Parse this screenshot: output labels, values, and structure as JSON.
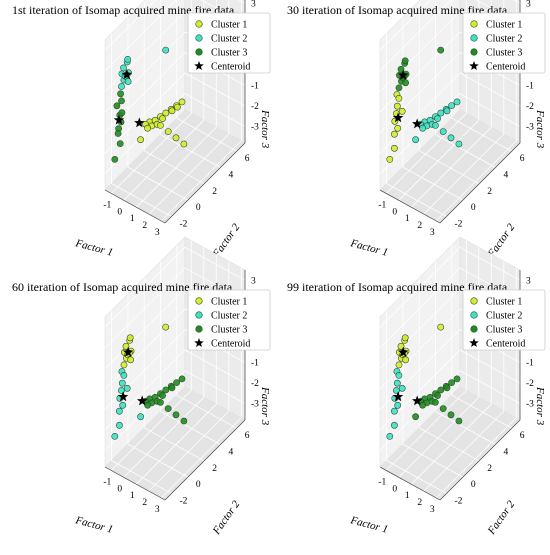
{
  "chart_data": [
    {
      "type": "scatter",
      "title": "1st iteration of Isomap acquired mine fire data",
      "xlabel": "Factor 1",
      "ylabel": "Factor 2",
      "zlabel": "Factor 3",
      "xlim": [
        -1.5,
        3.3
      ],
      "ylim": [
        -2.8,
        7.0
      ],
      "zlim": [
        -3.8,
        3.5
      ],
      "x_ticks": [
        "-1",
        "0",
        "1",
        "2",
        "3"
      ],
      "y_ticks": [
        "-2",
        "0",
        "2",
        "4",
        "6"
      ],
      "z_ticks": [
        "-3",
        "-2",
        "-1",
        "0",
        "1",
        "2",
        "3"
      ],
      "legend_position": "top-right",
      "series": [
        {
          "name": "Cluster 1",
          "color": "#d8ea2a",
          "points": [
            [
              0.9,
              -1.0,
              -0.4
            ],
            [
              1.2,
              -0.8,
              -0.3
            ],
            [
              1.5,
              -0.6,
              -0.1
            ],
            [
              1.8,
              -0.4,
              0.1
            ],
            [
              2.1,
              -0.2,
              0.3
            ],
            [
              2.4,
              0.0,
              0.5
            ],
            [
              2.7,
              0.2,
              0.7
            ],
            [
              1.0,
              -0.9,
              -0.6
            ],
            [
              1.3,
              -0.7,
              -0.5
            ],
            [
              1.6,
              -0.5,
              -0.2
            ],
            [
              0.7,
              -1.2,
              -0.5
            ],
            [
              0.8,
              -1.1,
              -0.7
            ],
            [
              1.1,
              0.0,
              -0.9
            ],
            [
              1.4,
              0.5,
              -1.3
            ],
            [
              1.7,
              1.0,
              -1.7
            ],
            [
              2.0,
              1.5,
              -2.1
            ],
            [
              0.5,
              -1.5,
              -1.2
            ],
            [
              1.9,
              0.2,
              0.0
            ],
            [
              2.2,
              0.4,
              0.2
            ]
          ]
        },
        {
          "name": "Cluster 2",
          "color": "#3de0c8",
          "points": [
            [
              -1.0,
              -1.5,
              1.5
            ],
            [
              -0.8,
              -1.6,
              1.9
            ],
            [
              -0.9,
              -1.4,
              1.2
            ],
            [
              -0.6,
              -1.7,
              1.6
            ],
            [
              -0.7,
              -1.3,
              2.1
            ],
            [
              -0.5,
              -1.5,
              1.3
            ],
            [
              -0.9,
              -1.7,
              1.0
            ],
            [
              -0.4,
              -1.6,
              1.8
            ],
            [
              -0.8,
              -1.2,
              1.4
            ],
            [
              -0.6,
              -1.4,
              2.3
            ],
            [
              1.2,
              0.5,
              2.6
            ]
          ]
        },
        {
          "name": "Cluster 3",
          "color": "#1f8c1f",
          "points": [
            [
              -1.2,
              -1.8,
              0.0
            ],
            [
              -1.1,
              -1.6,
              -0.5
            ],
            [
              -1.0,
              -1.9,
              -1.0
            ],
            [
              -1.3,
              -1.5,
              -1.5
            ],
            [
              -0.9,
              -1.7,
              0.3
            ],
            [
              -1.2,
              -1.4,
              -2.0
            ],
            [
              -1.0,
              -1.6,
              -0.8
            ],
            [
              -1.3,
              -1.9,
              -2.6
            ],
            [
              -0.8,
              -1.8,
              -0.2
            ],
            [
              -1.1,
              -1.5,
              0.5
            ]
          ]
        }
      ],
      "centroids": [
        [
          0.2,
          -1.2,
          -0.6
        ],
        [
          -0.6,
          -1.5,
          1.6
        ],
        [
          -1.1,
          -1.7,
          -0.7
        ]
      ]
    },
    {
      "type": "scatter",
      "title": "30 iteration of Isomap acquired mine fire data",
      "xlabel": "Factor 1",
      "ylabel": "Factor 2",
      "zlabel": "Factor 3",
      "xlim": [
        -1.5,
        3.3
      ],
      "ylim": [
        -2.8,
        7.0
      ],
      "zlim": [
        -3.8,
        3.5
      ],
      "x_ticks": [
        "-1",
        "0",
        "1",
        "2",
        "3"
      ],
      "y_ticks": [
        "-2",
        "0",
        "2",
        "4",
        "6"
      ],
      "z_ticks": [
        "-3",
        "-2",
        "-1",
        "0",
        "1",
        "2",
        "3"
      ],
      "legend_position": "top-right",
      "series": [
        {
          "name": "Cluster 1",
          "color": "#d8ea2a",
          "points": [
            [
              -1.0,
              -1.5,
              0.5
            ],
            [
              -0.9,
              -1.6,
              0.0
            ],
            [
              -1.1,
              -1.4,
              -0.5
            ],
            [
              -0.8,
              -1.7,
              -1.0
            ],
            [
              -1.2,
              -1.5,
              -1.5
            ],
            [
              -1.0,
              -1.8,
              -2.0
            ],
            [
              -0.9,
              -1.4,
              0.3
            ],
            [
              -1.1,
              -1.6,
              -0.8
            ],
            [
              -1.3,
              -1.9,
              -2.6
            ],
            [
              -0.7,
              -1.3,
              -0.3
            ]
          ]
        },
        {
          "name": "Cluster 2",
          "color": "#3de0c8",
          "points": [
            [
              0.9,
              -1.0,
              -0.4
            ],
            [
              1.2,
              -0.8,
              -0.3
            ],
            [
              1.5,
              -0.6,
              -0.1
            ],
            [
              1.8,
              -0.4,
              0.1
            ],
            [
              2.1,
              -0.2,
              0.3
            ],
            [
              2.4,
              0.0,
              0.5
            ],
            [
              2.7,
              0.2,
              0.7
            ],
            [
              1.0,
              -0.9,
              -0.6
            ],
            [
              1.3,
              -0.7,
              -0.5
            ],
            [
              1.6,
              -0.5,
              -0.2
            ],
            [
              0.7,
              -1.2,
              -0.5
            ],
            [
              0.8,
              -1.1,
              -0.7
            ],
            [
              1.1,
              0.0,
              -0.9
            ],
            [
              1.4,
              0.5,
              -1.3
            ],
            [
              1.7,
              1.0,
              -1.7
            ],
            [
              2.0,
              1.5,
              -2.1
            ],
            [
              0.5,
              -1.5,
              -1.2
            ],
            [
              1.9,
              0.2,
              0.0
            ]
          ]
        },
        {
          "name": "Cluster 3",
          "color": "#1f8c1f",
          "points": [
            [
              -0.8,
              -1.5,
              1.5
            ],
            [
              -0.6,
              -1.6,
              1.9
            ],
            [
              -0.7,
              -1.4,
              1.2
            ],
            [
              -0.4,
              -1.7,
              1.6
            ],
            [
              -0.5,
              -1.3,
              2.1
            ],
            [
              -0.3,
              -1.5,
              1.3
            ],
            [
              -0.7,
              -1.7,
              1.0
            ],
            [
              -0.2,
              -1.6,
              1.8
            ],
            [
              -0.6,
              -1.2,
              1.4
            ],
            [
              -0.4,
              -1.4,
              2.3
            ],
            [
              1.2,
              0.5,
              2.6
            ]
          ]
        }
      ],
      "centroids": [
        [
          -0.9,
          -1.5,
          -0.6
        ],
        [
          0.3,
          -1.0,
          -0.7
        ],
        [
          -0.5,
          -1.5,
          1.6
        ]
      ]
    },
    {
      "type": "scatter",
      "title": "60 iteration of Isomap acquired mine fire data",
      "xlabel": "Factor 1",
      "ylabel": "Factor 2",
      "zlabel": "Factor 3",
      "xlim": [
        -1.5,
        3.3
      ],
      "ylim": [
        -2.8,
        7.0
      ],
      "zlim": [
        -3.8,
        3.5
      ],
      "x_ticks": [
        "-1",
        "0",
        "1",
        "2",
        "3"
      ],
      "y_ticks": [
        "-2",
        "0",
        "2",
        "4",
        "6"
      ],
      "z_ticks": [
        "-3",
        "-2",
        "-1",
        "0",
        "1",
        "2",
        "3"
      ],
      "legend_position": "top-right",
      "series": [
        {
          "name": "Cluster 1",
          "color": "#d8ea2a",
          "points": [
            [
              -0.8,
              -1.5,
              1.5
            ],
            [
              -0.6,
              -1.6,
              1.9
            ],
            [
              -0.7,
              -1.4,
              1.2
            ],
            [
              -0.4,
              -1.7,
              1.6
            ],
            [
              -0.5,
              -1.3,
              2.1
            ],
            [
              -0.3,
              -1.5,
              1.3
            ],
            [
              -0.7,
              -1.7,
              1.0
            ],
            [
              -0.2,
              -1.6,
              1.8
            ],
            [
              -0.6,
              -1.2,
              1.4
            ],
            [
              -0.4,
              -1.4,
              2.3
            ],
            [
              1.2,
              0.5,
              2.6
            ]
          ]
        },
        {
          "name": "Cluster 2",
          "color": "#3de0c8",
          "points": [
            [
              -1.0,
              -1.5,
              0.5
            ],
            [
              -0.9,
              -1.6,
              0.0
            ],
            [
              -1.1,
              -1.4,
              -0.5
            ],
            [
              -0.8,
              -1.7,
              -1.0
            ],
            [
              -1.2,
              -1.5,
              -1.5
            ],
            [
              -1.0,
              -1.8,
              -2.0
            ],
            [
              -0.9,
              -1.4,
              0.3
            ],
            [
              -1.1,
              -1.6,
              -0.8
            ],
            [
              -1.3,
              -1.9,
              -2.6
            ],
            [
              -0.7,
              -1.3,
              -0.3
            ],
            [
              0.5,
              -1.5,
              -1.2
            ]
          ]
        },
        {
          "name": "Cluster 3",
          "color": "#1f8c1f",
          "points": [
            [
              0.9,
              -1.0,
              -0.4
            ],
            [
              1.2,
              -0.8,
              -0.3
            ],
            [
              1.5,
              -0.6,
              -0.1
            ],
            [
              1.8,
              -0.4,
              0.1
            ],
            [
              2.1,
              -0.2,
              0.3
            ],
            [
              2.4,
              0.0,
              0.5
            ],
            [
              2.7,
              0.2,
              0.7
            ],
            [
              1.0,
              -0.9,
              -0.6
            ],
            [
              1.3,
              -0.7,
              -0.5
            ],
            [
              1.6,
              -0.5,
              -0.2
            ],
            [
              0.7,
              -1.2,
              -0.5
            ],
            [
              0.8,
              -1.1,
              -0.7
            ],
            [
              1.1,
              0.0,
              -0.9
            ],
            [
              1.4,
              0.5,
              -1.3
            ],
            [
              1.7,
              1.0,
              -1.7
            ],
            [
              2.0,
              1.5,
              -2.1
            ],
            [
              1.9,
              0.2,
              0.0
            ]
          ]
        }
      ],
      "centroids": [
        [
          -0.5,
          -1.5,
          1.6
        ],
        [
          -0.9,
          -1.5,
          -0.7
        ],
        [
          0.3,
          -1.0,
          -0.7
        ]
      ]
    },
    {
      "type": "scatter",
      "title": "99 iteration of Isomap acquired mine fire data",
      "xlabel": "Factor 1",
      "ylabel": "Factor 2",
      "zlabel": "Factor 3",
      "xlim": [
        -1.5,
        3.3
      ],
      "ylim": [
        -2.8,
        7.0
      ],
      "zlim": [
        -3.8,
        3.5
      ],
      "x_ticks": [
        "-1",
        "0",
        "1",
        "2",
        "3"
      ],
      "y_ticks": [
        "-2",
        "0",
        "2",
        "4",
        "6"
      ],
      "z_ticks": [
        "-3",
        "-2",
        "-1",
        "0",
        "1",
        "2",
        "3"
      ],
      "legend_position": "top-right",
      "series": [
        {
          "name": "Cluster 1",
          "color": "#d8ea2a",
          "points": [
            [
              -0.8,
              -1.5,
              1.5
            ],
            [
              -0.6,
              -1.6,
              1.9
            ],
            [
              -0.7,
              -1.4,
              1.2
            ],
            [
              -0.4,
              -1.7,
              1.6
            ],
            [
              -0.5,
              -1.3,
              2.1
            ],
            [
              -0.3,
              -1.5,
              1.3
            ],
            [
              -0.7,
              -1.7,
              1.0
            ],
            [
              -0.2,
              -1.6,
              1.8
            ],
            [
              -0.6,
              -1.2,
              1.4
            ],
            [
              -0.4,
              -1.4,
              2.3
            ],
            [
              1.2,
              0.5,
              2.6
            ]
          ]
        },
        {
          "name": "Cluster 2",
          "color": "#3de0c8",
          "points": [
            [
              -1.0,
              -1.5,
              0.5
            ],
            [
              -0.9,
              -1.6,
              0.0
            ],
            [
              -1.1,
              -1.4,
              -0.5
            ],
            [
              -0.8,
              -1.7,
              -1.0
            ],
            [
              -1.2,
              -1.5,
              -1.5
            ],
            [
              -1.0,
              -1.8,
              -2.0
            ],
            [
              -0.9,
              -1.4,
              0.3
            ],
            [
              -1.1,
              -1.6,
              -0.8
            ],
            [
              -1.3,
              -1.9,
              -2.6
            ],
            [
              -0.7,
              -1.3,
              -0.3
            ]
          ]
        },
        {
          "name": "Cluster 3",
          "color": "#1f8c1f",
          "points": [
            [
              0.9,
              -1.0,
              -0.4
            ],
            [
              1.2,
              -0.8,
              -0.3
            ],
            [
              1.5,
              -0.6,
              -0.1
            ],
            [
              1.8,
              -0.4,
              0.1
            ],
            [
              2.1,
              -0.2,
              0.3
            ],
            [
              2.4,
              0.0,
              0.5
            ],
            [
              2.7,
              0.2,
              0.7
            ],
            [
              1.0,
              -0.9,
              -0.6
            ],
            [
              1.3,
              -0.7,
              -0.5
            ],
            [
              1.6,
              -0.5,
              -0.2
            ],
            [
              0.7,
              -1.2,
              -0.5
            ],
            [
              0.8,
              -1.1,
              -0.7
            ],
            [
              1.1,
              0.0,
              -0.9
            ],
            [
              1.4,
              0.5,
              -1.3
            ],
            [
              1.7,
              1.0,
              -1.7
            ],
            [
              2.0,
              1.5,
              -2.1
            ],
            [
              0.5,
              -1.5,
              -1.2
            ],
            [
              1.9,
              0.2,
              0.0
            ]
          ]
        }
      ],
      "centroids": [
        [
          -0.5,
          -1.5,
          1.6
        ],
        [
          -0.9,
          -1.5,
          -0.7
        ],
        [
          0.3,
          -1.0,
          -0.7
        ]
      ]
    }
  ],
  "centroid_label": "Centeroid",
  "centroid_color": "#000000"
}
